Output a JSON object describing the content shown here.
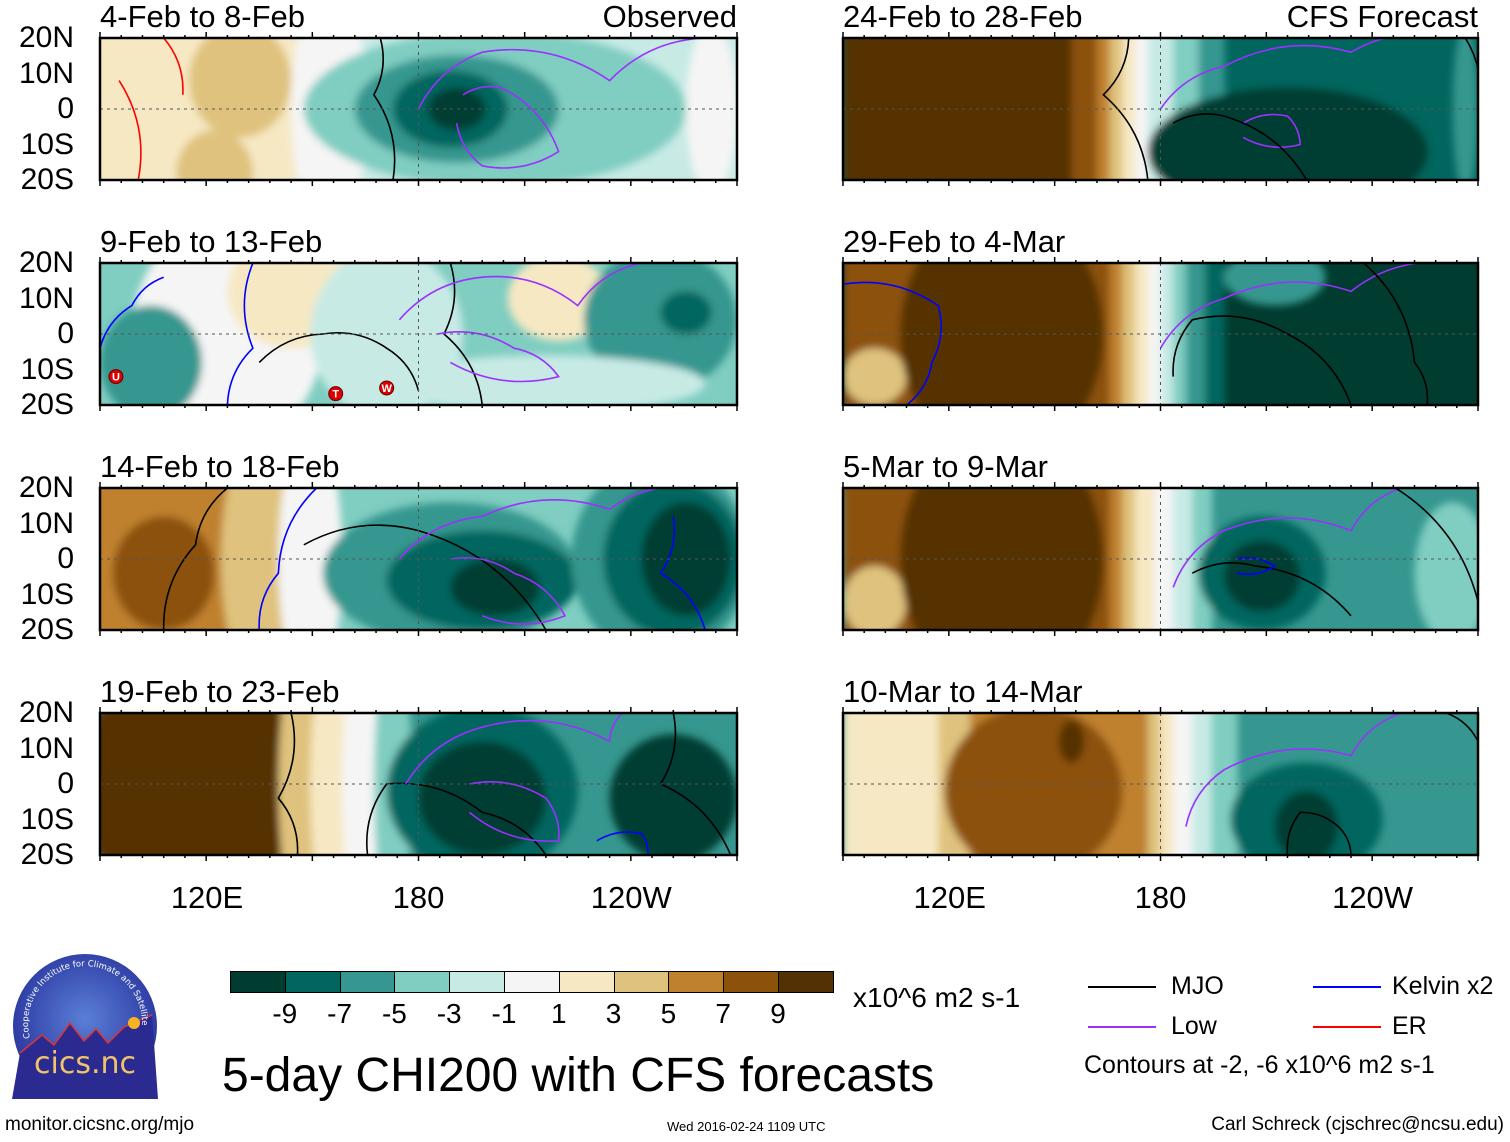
{
  "panels": [
    {
      "title": "4-Feb to 8-Feb",
      "tag": "Observed"
    },
    {
      "title": "9-Feb to 13-Feb",
      "tag": ""
    },
    {
      "title": "14-Feb to 18-Feb",
      "tag": ""
    },
    {
      "title": "19-Feb to 23-Feb",
      "tag": ""
    },
    {
      "title": "24-Feb to 28-Feb",
      "tag": "CFS Forecast"
    },
    {
      "title": "29-Feb to 4-Mar",
      "tag": ""
    },
    {
      "title": "5-Mar to 9-Mar",
      "tag": ""
    },
    {
      "title": "10-Mar to 14-Mar",
      "tag": ""
    }
  ],
  "lat_labels": [
    "20N",
    "10N",
    "0",
    "10S",
    "20S"
  ],
  "lon_labels": [
    "120E",
    "180",
    "120W"
  ],
  "storm_markers": [
    "U",
    "T",
    "W"
  ],
  "colorbar": {
    "colors": [
      "#003c30",
      "#01665e",
      "#35978f",
      "#80cdc1",
      "#c7eae5",
      "#f5f5f5",
      "#f6e8c3",
      "#dfc27d",
      "#bf812d",
      "#8c510a",
      "#543005"
    ],
    "labels": [
      "-9",
      "-7",
      "-5",
      "-3",
      "-1",
      "1",
      "3",
      "5",
      "7",
      "9"
    ],
    "units": "x10^6 m2 s-1"
  },
  "legend": {
    "items": [
      {
        "label": "MJO",
        "color": "#000000"
      },
      {
        "label": "Kelvin x2",
        "color": "#0000ff"
      },
      {
        "label": "Low",
        "color": "#9b30ff"
      },
      {
        "label": "ER",
        "color": "#ff0000"
      }
    ],
    "note": "Contours at -2, -6 x10^6 m2 s-1"
  },
  "title": "5-day CHI200 with CFS forecasts",
  "logo": {
    "text": "cics.nc",
    "ring": "Cooperative Institute for Climate and Satellites"
  },
  "footer": {
    "url": "monitor.cicsnc.org/mjo",
    "timestamp": "Wed 2016-02-24 1109 UTC",
    "credit": "Carl Schreck (cjschrec@ncsu.edu)"
  }
}
